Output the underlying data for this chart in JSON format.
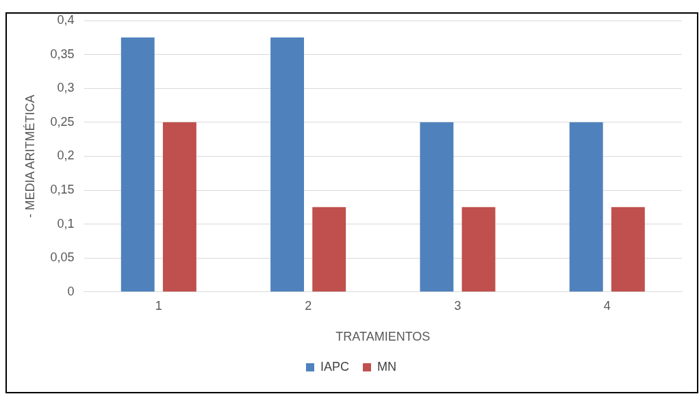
{
  "chart_data": {
    "type": "bar",
    "xlabel": "TRATAMIENTOS",
    "ylabel": "- MEDIA ARITMÉTICA",
    "categories": [
      "1",
      "2",
      "3",
      "4"
    ],
    "series": [
      {
        "name": "IAPC",
        "color": "#4f81bd",
        "values": [
          0.375,
          0.375,
          0.25,
          0.25
        ]
      },
      {
        "name": "MN",
        "color": "#c0504d",
        "values": [
          0.25,
          0.125,
          0.125,
          0.125
        ]
      }
    ],
    "ylim": [
      0,
      0.4
    ],
    "yticks": [
      0,
      {
        "value": 0.05,
        "label": "0,05"
      },
      {
        "value": 0.1,
        "label": "0,1"
      },
      {
        "value": 0.15,
        "label": "0,15"
      },
      {
        "value": 0.2,
        "label": "0,2"
      },
      {
        "value": 0.25,
        "label": "0,25"
      },
      {
        "value": 0.3,
        "label": "0,3"
      },
      {
        "value": 0.35,
        "label": "0,35"
      },
      {
        "value": 0.4,
        "label": "0,4"
      }
    ],
    "grid": "y",
    "legend": "bottom"
  }
}
